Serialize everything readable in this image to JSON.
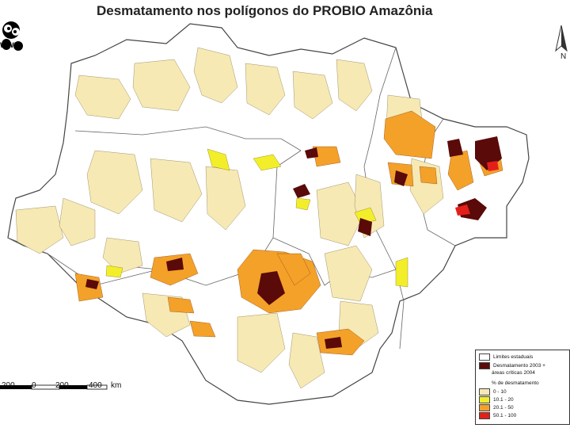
{
  "title": "Desmatamento nos polígonos do PROBIO Amazônia",
  "logo": {
    "label": "WWF"
  },
  "north_label": "N",
  "scale_bar": {
    "labels": [
      "200",
      "0",
      "200",
      "400"
    ],
    "unit": "km"
  },
  "legend": {
    "items": [
      {
        "label": "Limites estaduais",
        "color": "#ffffff"
      },
      {
        "label": "Desmatamento 2003 +",
        "label2": "áreas críticas 2004",
        "color": "#5a0a08"
      }
    ],
    "pct_title": "% de desmatamento",
    "classes": [
      {
        "label": "0 - 10",
        "color": "#f6e9b4"
      },
      {
        "label": "10.1 - 20",
        "color": "#f2ef2a"
      },
      {
        "label": "20.1 - 50",
        "color": "#f4a12a"
      },
      {
        "label": "50.1 - 100",
        "color": "#e41f1a"
      }
    ]
  },
  "colors": {
    "background_region": "#ffffff",
    "polygon_low": "#f6e9b4",
    "polygon_mid": "#f2ef2a",
    "polygon_high": "#f4a12a",
    "polygon_top": "#e41f1a",
    "deforest": "#5a0a08",
    "borders": "#555555"
  }
}
